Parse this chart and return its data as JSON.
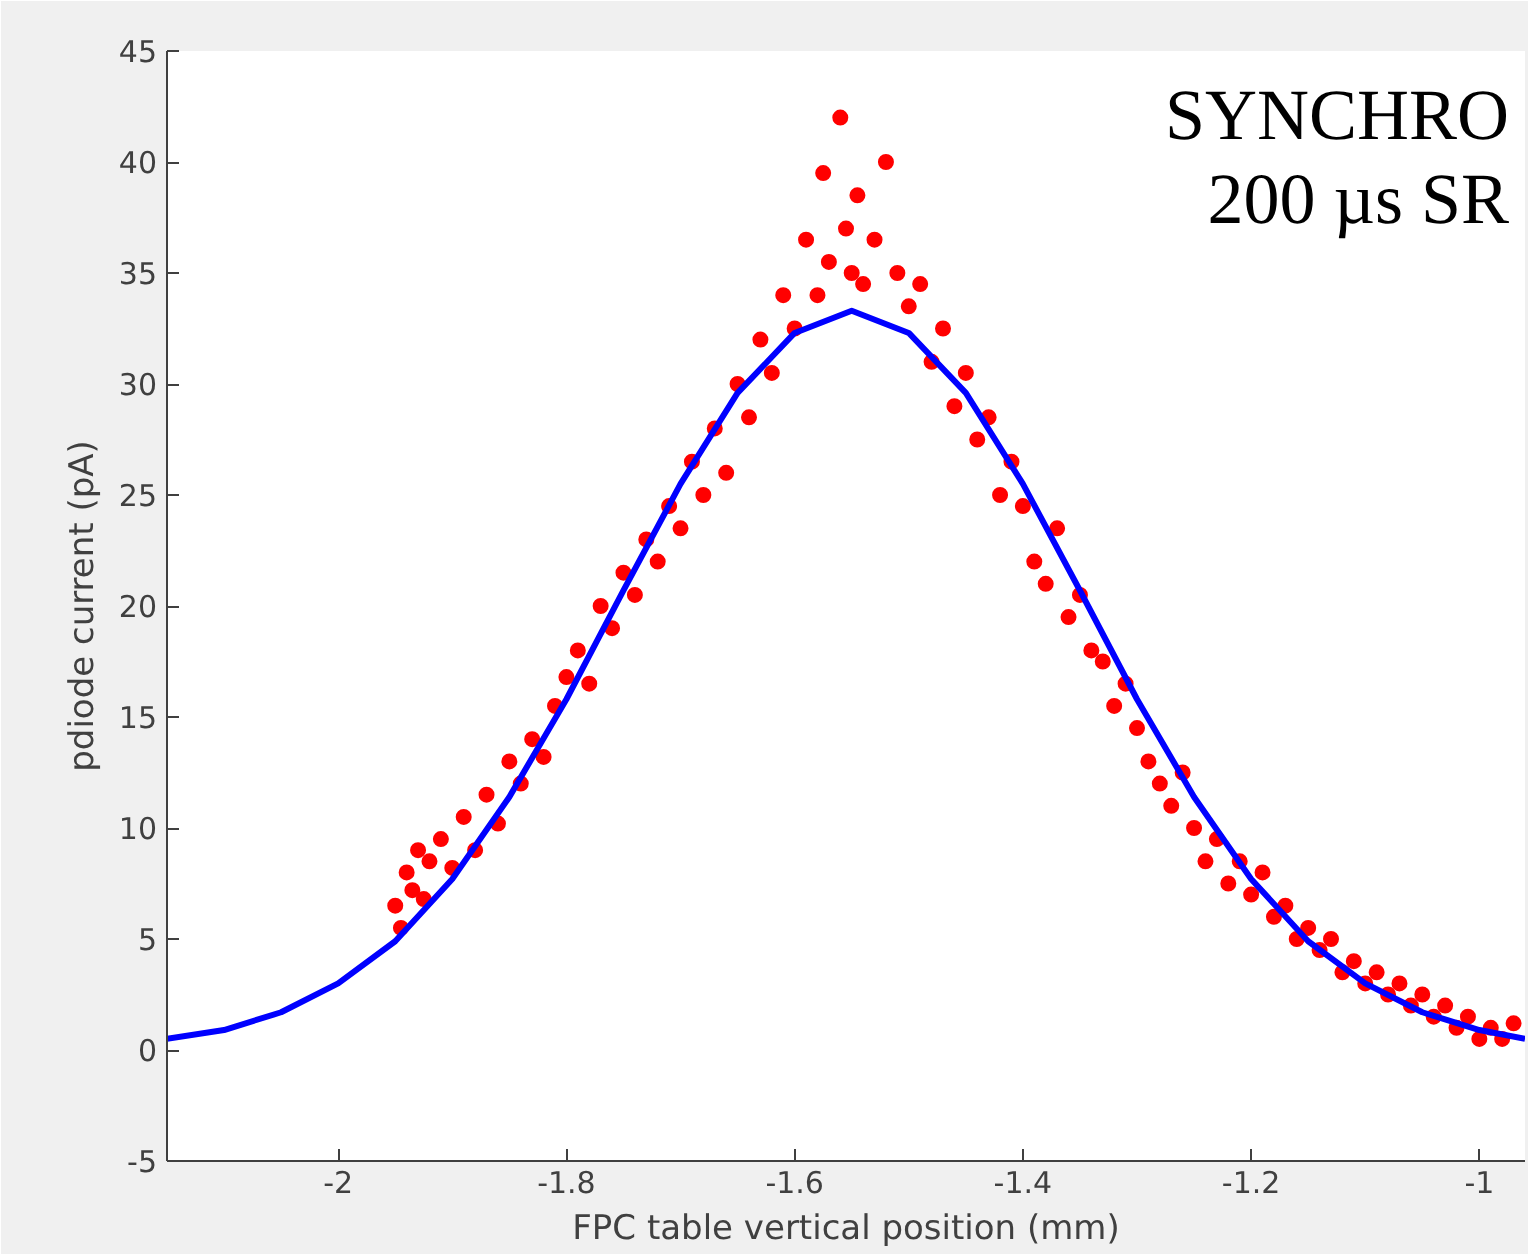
{
  "chart_data": {
    "type": "scatter",
    "xlabel": "FPC table vertical position (mm)",
    "ylabel": "pdiode current (pA)",
    "annotations": [
      "SYNCHRO",
      "200 µs SR"
    ],
    "xlim": [
      -2.15,
      -0.96
    ],
    "xticks": [
      -2,
      -1.8,
      -1.6,
      -1.4,
      -1.2,
      -1
    ],
    "ylim": [
      -5,
      45
    ],
    "yticks": [
      -5,
      0,
      5,
      10,
      15,
      20,
      25,
      30,
      35,
      40,
      45
    ],
    "grid": false,
    "series": [
      {
        "marker": "circle",
        "color": "#ff0000",
        "x": [
          -1.95,
          -1.945,
          -1.94,
          -1.935,
          -1.93,
          -1.925,
          -1.92,
          -1.91,
          -1.9,
          -1.89,
          -1.88,
          -1.87,
          -1.86,
          -1.85,
          -1.84,
          -1.83,
          -1.82,
          -1.81,
          -1.8,
          -1.79,
          -1.78,
          -1.77,
          -1.76,
          -1.75,
          -1.74,
          -1.73,
          -1.72,
          -1.71,
          -1.7,
          -1.69,
          -1.68,
          -1.67,
          -1.66,
          -1.65,
          -1.64,
          -1.63,
          -1.62,
          -1.61,
          -1.6,
          -1.59,
          -1.58,
          -1.575,
          -1.57,
          -1.56,
          -1.555,
          -1.55,
          -1.545,
          -1.54,
          -1.53,
          -1.52,
          -1.51,
          -1.5,
          -1.49,
          -1.48,
          -1.47,
          -1.46,
          -1.45,
          -1.44,
          -1.43,
          -1.42,
          -1.41,
          -1.4,
          -1.39,
          -1.38,
          -1.37,
          -1.36,
          -1.35,
          -1.34,
          -1.33,
          -1.32,
          -1.31,
          -1.3,
          -1.29,
          -1.28,
          -1.27,
          -1.26,
          -1.25,
          -1.24,
          -1.23,
          -1.22,
          -1.21,
          -1.2,
          -1.19,
          -1.18,
          -1.17,
          -1.16,
          -1.15,
          -1.14,
          -1.13,
          -1.12,
          -1.11,
          -1.1,
          -1.09,
          -1.08,
          -1.07,
          -1.06,
          -1.05,
          -1.04,
          -1.03,
          -1.02,
          -1.01,
          -1.0,
          -0.99,
          -0.98,
          -0.97
        ],
        "values": [
          6.5,
          5.5,
          8.0,
          7.2,
          9.0,
          6.8,
          8.5,
          9.5,
          8.2,
          10.5,
          9.0,
          11.5,
          10.2,
          13.0,
          12.0,
          14.0,
          13.2,
          15.5,
          16.8,
          18.0,
          16.5,
          20.0,
          19.0,
          21.5,
          20.5,
          23.0,
          22.0,
          24.5,
          23.5,
          26.5,
          25.0,
          28.0,
          26.0,
          30.0,
          28.5,
          32.0,
          30.5,
          34.0,
          32.5,
          36.5,
          34.0,
          39.5,
          35.5,
          42.0,
          37.0,
          35.0,
          38.5,
          34.5,
          36.5,
          40.0,
          35.0,
          33.5,
          34.5,
          31.0,
          32.5,
          29.0,
          30.5,
          27.5,
          28.5,
          25.0,
          26.5,
          24.5,
          22.0,
          21.0,
          23.5,
          19.5,
          20.5,
          18.0,
          17.5,
          15.5,
          16.5,
          14.5,
          13.0,
          12.0,
          11.0,
          12.5,
          10.0,
          8.5,
          9.5,
          7.5,
          8.5,
          7.0,
          8.0,
          6.0,
          6.5,
          5.0,
          5.5,
          4.5,
          5.0,
          3.5,
          4.0,
          3.0,
          3.5,
          2.5,
          3.0,
          2.0,
          2.5,
          1.5,
          2.0,
          1.0,
          1.5,
          0.5,
          1.0,
          0.5,
          1.2
        ]
      },
      {
        "type": "line",
        "line_style": "solid",
        "color": "#0000ff",
        "x": [
          -2.15,
          -2.1,
          -2.05,
          -2.0,
          -1.95,
          -1.9,
          -1.85,
          -1.8,
          -1.75,
          -1.7,
          -1.65,
          -1.6,
          -1.55,
          -1.5,
          -1.45,
          -1.4,
          -1.35,
          -1.3,
          -1.25,
          -1.2,
          -1.15,
          -1.1,
          -1.05,
          -1.0,
          -0.96
        ],
        "values": [
          0.5,
          0.9,
          1.7,
          3.0,
          4.9,
          7.7,
          11.4,
          15.8,
          20.7,
          25.5,
          29.6,
          32.3,
          33.3,
          32.3,
          29.6,
          25.5,
          20.7,
          15.8,
          11.4,
          7.7,
          4.9,
          3.0,
          1.7,
          0.9,
          0.5
        ]
      }
    ]
  }
}
